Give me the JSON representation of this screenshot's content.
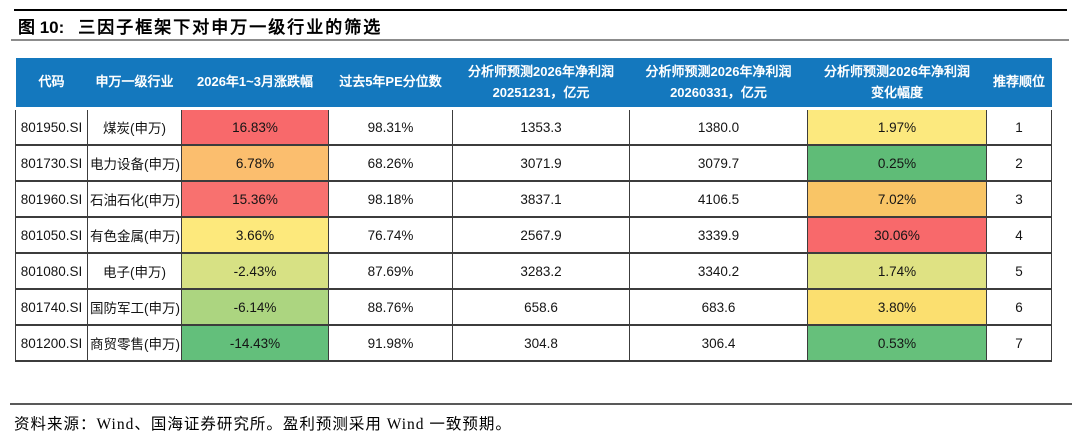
{
  "figure": {
    "label": "图 10:",
    "title": "三因子框架下对申万一级行业的筛选"
  },
  "table": {
    "headers": [
      "代码",
      "申万一级行业",
      "2026年1~3月涨跌幅",
      "过去5年PE分位数",
      "分析师预测2026年净利润\n20251231，亿元",
      "分析师预测2026年净利润\n20260331，亿元",
      "分析师预测2026年净利润\n变化幅度",
      "推荐顺位"
    ],
    "rows": [
      {
        "code": "801950.SI",
        "industry": "煤炭(申万)",
        "change": "16.83%",
        "change_color": "#F8696B",
        "pe": "98.31%",
        "profit_dec": "1353.3",
        "profit_mar": "1380.0",
        "delta": "1.97%",
        "delta_color": "#FCE97E",
        "rank": "1"
      },
      {
        "code": "801730.SI",
        "industry": "电力设备(申万)",
        "change": "6.78%",
        "change_color": "#FBBE6E",
        "pe": "68.26%",
        "profit_dec": "3071.9",
        "profit_mar": "3079.7",
        "delta": "0.25%",
        "delta_color": "#5FBC77",
        "rank": "2"
      },
      {
        "code": "801960.SI",
        "industry": "石油石化(申万)",
        "change": "15.36%",
        "change_color": "#F8716F",
        "pe": "98.18%",
        "profit_dec": "3837.1",
        "profit_mar": "4106.5",
        "delta": "7.02%",
        "delta_color": "#F9C566",
        "rank": "3"
      },
      {
        "code": "801050.SI",
        "industry": "有色金属(申万)",
        "change": "3.66%",
        "change_color": "#FDE97C",
        "pe": "76.74%",
        "profit_dec": "2567.9",
        "profit_mar": "3339.9",
        "delta": "30.06%",
        "delta_color": "#F8696B",
        "rank": "4"
      },
      {
        "code": "801080.SI",
        "industry": "电子(申万)",
        "change": "-2.43%",
        "change_color": "#D7E184",
        "pe": "87.69%",
        "profit_dec": "3283.2",
        "profit_mar": "3340.2",
        "delta": "1.74%",
        "delta_color": "#DFE283",
        "rank": "5"
      },
      {
        "code": "801740.SI",
        "industry": "国防军工(申万)",
        "change": "-6.14%",
        "change_color": "#ACD580",
        "pe": "88.76%",
        "profit_dec": "658.6",
        "profit_mar": "683.6",
        "delta": "3.80%",
        "delta_color": "#FBDF6F",
        "rank": "6"
      },
      {
        "code": "801200.SI",
        "industry": "商贸零售(申万)",
        "change": "-14.43%",
        "change_color": "#63BF7B",
        "pe": "91.98%",
        "profit_dec": "304.8",
        "profit_mar": "306.4",
        "delta": "0.53%",
        "delta_color": "#66C07B",
        "rank": "7"
      }
    ]
  },
  "footer": {
    "source": "资料来源：Wind、国海证券研究所。盈利预测采用 Wind 一致预期。"
  },
  "colors": {
    "header_bg": "#1478BE",
    "grid": "#3C3C3C",
    "red": "#F8696B",
    "yellow": "#FCE97E",
    "green": "#63BF7B",
    "orange": "#FBBE6E"
  }
}
